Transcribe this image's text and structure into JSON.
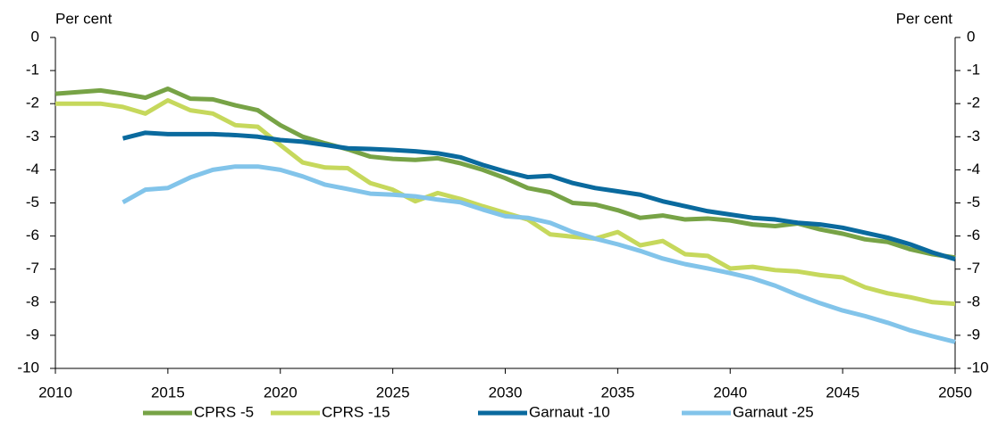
{
  "chart_data": {
    "type": "line",
    "y_label": "Per cent",
    "y2_label": "Per cent",
    "x": [
      2010,
      2011,
      2012,
      2013,
      2014,
      2015,
      2016,
      2017,
      2018,
      2019,
      2020,
      2021,
      2022,
      2023,
      2024,
      2025,
      2026,
      2027,
      2028,
      2029,
      2030,
      2031,
      2032,
      2033,
      2034,
      2035,
      2036,
      2037,
      2038,
      2039,
      2040,
      2041,
      2042,
      2043,
      2044,
      2045,
      2046,
      2047,
      2048,
      2049,
      2050
    ],
    "xlim": [
      2010,
      2050
    ],
    "xticks": [
      2010,
      2015,
      2020,
      2025,
      2030,
      2035,
      2040,
      2045,
      2050
    ],
    "ylim": [
      -10,
      0
    ],
    "yticks": [
      0,
      -1,
      -2,
      -3,
      -4,
      -5,
      -6,
      -7,
      -8,
      -9,
      -10
    ],
    "y2lim": [
      -10,
      0
    ],
    "y2ticks": [
      0,
      -1,
      -2,
      -3,
      -4,
      -5,
      -6,
      -7,
      -8,
      -9,
      -10
    ],
    "legend": "bottom",
    "series": [
      {
        "name": "CPRS -5",
        "color": "#77a346",
        "values": [
          -1.7,
          -1.65,
          -1.6,
          -1.7,
          -1.82,
          -1.55,
          -1.85,
          -1.87,
          -2.05,
          -2.2,
          -2.65,
          -3.0,
          -3.2,
          -3.38,
          -3.6,
          -3.67,
          -3.7,
          -3.65,
          -3.8,
          -4.0,
          -4.25,
          -4.55,
          -4.68,
          -5.0,
          -5.05,
          -5.22,
          -5.45,
          -5.38,
          -5.5,
          -5.47,
          -5.53,
          -5.65,
          -5.7,
          -5.62,
          -5.8,
          -5.93,
          -6.1,
          -6.18,
          -6.4,
          -6.55,
          -6.65
        ]
      },
      {
        "name": "CPRS -15",
        "color": "#c6d85c",
        "values": [
          -2.0,
          -2.0,
          -2.0,
          -2.1,
          -2.3,
          -1.9,
          -2.2,
          -2.3,
          -2.65,
          -2.7,
          -3.25,
          -3.78,
          -3.93,
          -3.95,
          -4.4,
          -4.6,
          -4.95,
          -4.7,
          -4.88,
          -5.1,
          -5.3,
          -5.5,
          -5.95,
          -6.02,
          -6.08,
          -5.88,
          -6.28,
          -6.15,
          -6.55,
          -6.6,
          -6.98,
          -6.93,
          -7.03,
          -7.07,
          -7.18,
          -7.25,
          -7.55,
          -7.73,
          -7.85,
          -8.0,
          -8.05
        ]
      },
      {
        "name": "Garnaut -10",
        "color": "#0a6a9e",
        "values": [
          null,
          null,
          null,
          -3.05,
          -2.88,
          -2.92,
          -2.92,
          -2.92,
          -2.95,
          -3.0,
          -3.1,
          -3.15,
          -3.25,
          -3.35,
          -3.37,
          -3.4,
          -3.44,
          -3.5,
          -3.62,
          -3.85,
          -4.05,
          -4.22,
          -4.18,
          -4.4,
          -4.55,
          -4.65,
          -4.75,
          -4.95,
          -5.1,
          -5.25,
          -5.35,
          -5.45,
          -5.5,
          -5.6,
          -5.65,
          -5.75,
          -5.9,
          -6.05,
          -6.25,
          -6.5,
          -6.7
        ]
      },
      {
        "name": "Garnaut -25",
        "color": "#82c4ea",
        "values": [
          null,
          null,
          null,
          -4.98,
          -4.6,
          -4.55,
          -4.23,
          -4.0,
          -3.9,
          -3.9,
          -4.0,
          -4.2,
          -4.45,
          -4.58,
          -4.72,
          -4.75,
          -4.8,
          -4.9,
          -4.98,
          -5.2,
          -5.4,
          -5.45,
          -5.6,
          -5.88,
          -6.08,
          -6.25,
          -6.45,
          -6.68,
          -6.85,
          -6.98,
          -7.12,
          -7.28,
          -7.5,
          -7.78,
          -8.03,
          -8.25,
          -8.42,
          -8.62,
          -8.85,
          -9.03,
          -9.2
        ]
      }
    ]
  }
}
